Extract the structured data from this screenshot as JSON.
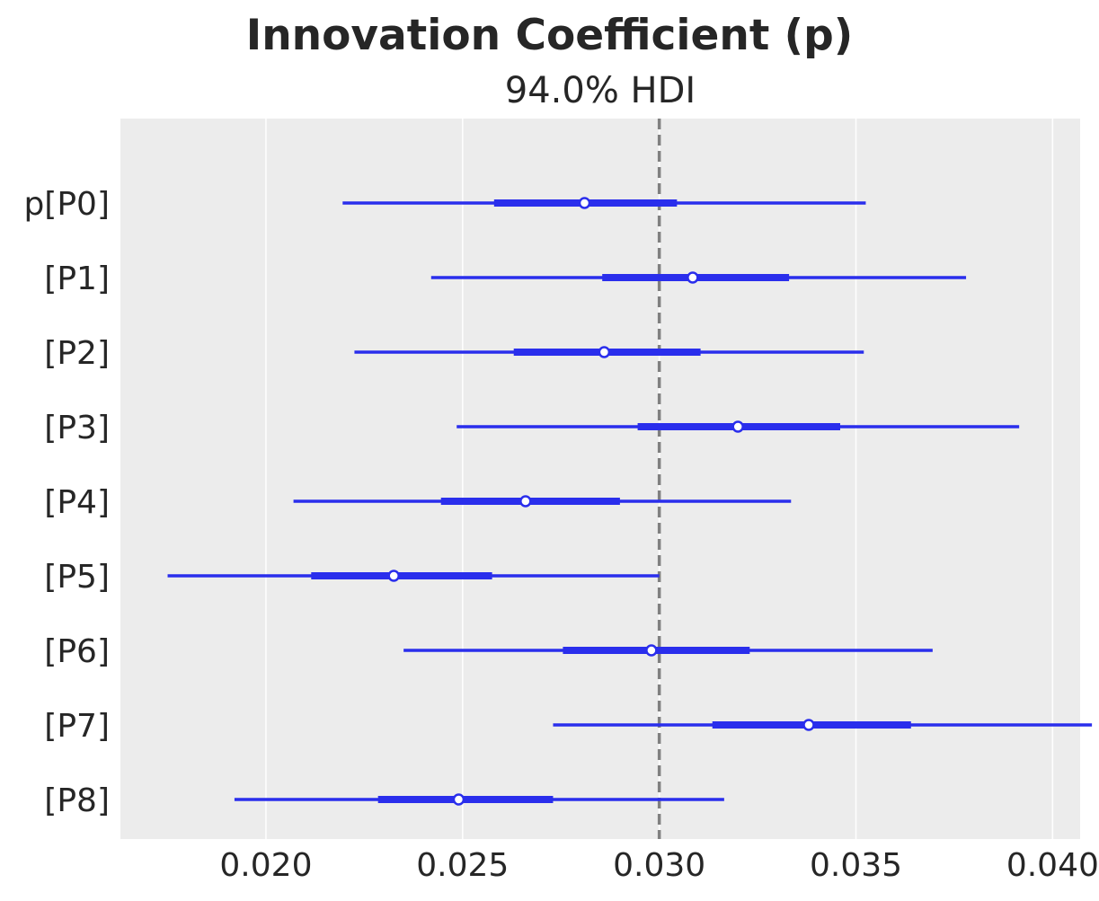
{
  "chart_data": {
    "type": "forest",
    "title": "Innovation Coefficient (p)",
    "subtitle": "94.0% HDI",
    "xlim": [
      0.0163,
      0.0407
    ],
    "xticks": [
      0.02,
      0.025,
      0.03,
      0.035,
      0.04
    ],
    "xtick_labels": [
      "0.020",
      "0.025",
      "0.030",
      "0.035",
      "0.040"
    ],
    "reference_line": 0.03,
    "grid": "vertical",
    "colors": {
      "series": "#2a2eec",
      "reference": "#808080",
      "panel": "#ececec",
      "grid": "#ffffff",
      "text": "#262626"
    },
    "rows": [
      {
        "label": "p[P0]",
        "median": 0.0281,
        "iqr": [
          0.0258,
          0.03045
        ],
        "hdi": [
          0.02195,
          0.03525
        ]
      },
      {
        "label": "[P1]",
        "median": 0.03085,
        "iqr": [
          0.02855,
          0.0333
        ],
        "hdi": [
          0.0242,
          0.0378
        ]
      },
      {
        "label": "[P2]",
        "median": 0.0286,
        "iqr": [
          0.0263,
          0.03105
        ],
        "hdi": [
          0.02225,
          0.0352
        ]
      },
      {
        "label": "[P3]",
        "median": 0.032,
        "iqr": [
          0.02945,
          0.0346
        ],
        "hdi": [
          0.02485,
          0.03915
        ]
      },
      {
        "label": "[P4]",
        "median": 0.0266,
        "iqr": [
          0.02445,
          0.029
        ],
        "hdi": [
          0.0207,
          0.03335
        ]
      },
      {
        "label": "[P5]",
        "median": 0.02325,
        "iqr": [
          0.02115,
          0.02575
        ],
        "hdi": [
          0.0175,
          0.03
        ]
      },
      {
        "label": "[P6]",
        "median": 0.0298,
        "iqr": [
          0.02755,
          0.0323
        ],
        "hdi": [
          0.0235,
          0.03695
        ]
      },
      {
        "label": "[P7]",
        "median": 0.0338,
        "iqr": [
          0.03135,
          0.0364
        ],
        "hdi": [
          0.0273,
          0.041
        ]
      },
      {
        "label": "[P8]",
        "median": 0.0249,
        "iqr": [
          0.02285,
          0.0273
        ],
        "hdi": [
          0.0192,
          0.03165
        ]
      }
    ]
  }
}
